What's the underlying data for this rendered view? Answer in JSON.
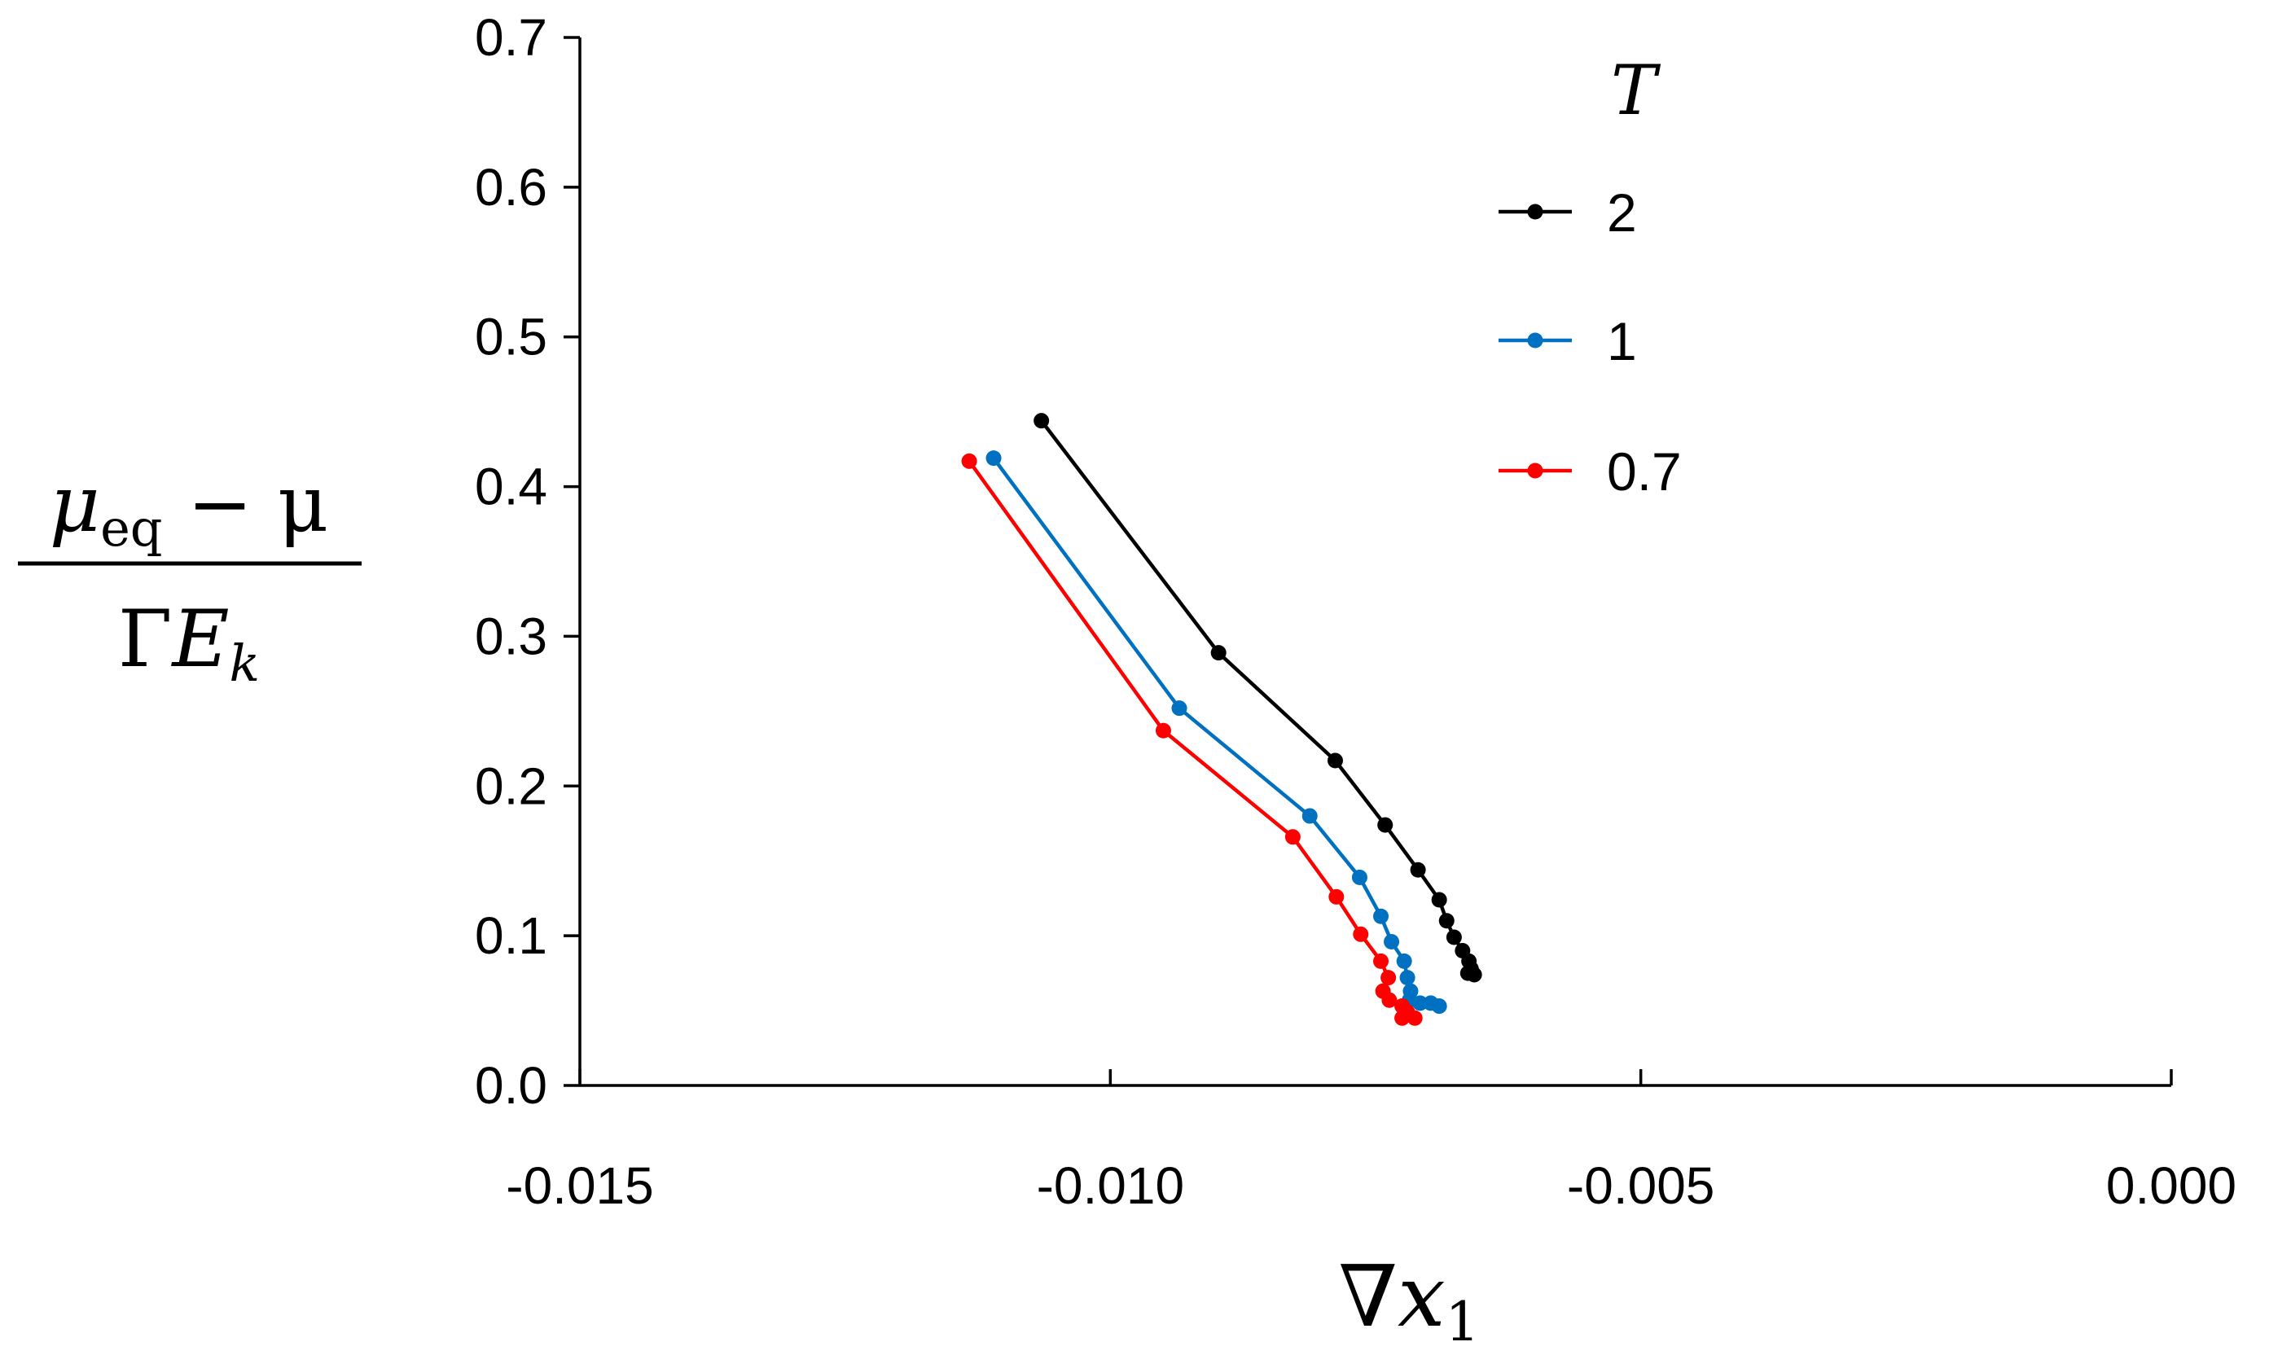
{
  "chart_data": {
    "type": "line",
    "title": "",
    "xlabel": "∇x₁",
    "xlabel_main": "∇",
    "xlabel_var": "x",
    "xlabel_sub": "1",
    "ylabel": "(μeq − μ) / (ΓE_k)",
    "ylabel_num_mu": "μ",
    "ylabel_num_sub": "eq",
    "ylabel_num_rest": " − μ",
    "ylabel_den_gamma": "Γ",
    "ylabel_den_var": "E",
    "ylabel_den_sub": "k",
    "xlim": [
      -0.015,
      0.0
    ],
    "ylim": [
      0.0,
      0.7
    ],
    "x_ticks": [
      -0.015,
      -0.01,
      -0.005,
      0.0
    ],
    "x_tick_labels": [
      "-0.015",
      "-0.010",
      "-0.005",
      "0.000"
    ],
    "y_ticks": [
      0.0,
      0.1,
      0.2,
      0.3,
      0.4,
      0.5,
      0.6,
      0.7
    ],
    "y_tick_labels": [
      "0.0",
      "0.1",
      "0.2",
      "0.3",
      "0.4",
      "0.5",
      "0.6",
      "0.7"
    ],
    "legend_title": "T",
    "legend_position": "top-right",
    "grid": false,
    "series": [
      {
        "name": "2",
        "color": "#000000",
        "points": [
          [
            -0.01065,
            0.444
          ],
          [
            -0.00898,
            0.289
          ],
          [
            -0.00788,
            0.217
          ],
          [
            -0.00741,
            0.174
          ],
          [
            -0.0071,
            0.144
          ],
          [
            -0.0069,
            0.124
          ],
          [
            -0.00683,
            0.11
          ],
          [
            -0.00676,
            0.099
          ],
          [
            -0.00668,
            0.09
          ],
          [
            -0.00662,
            0.083
          ],
          [
            -0.0066,
            0.078
          ],
          [
            -0.00663,
            0.075
          ],
          [
            -0.00657,
            0.074
          ]
        ]
      },
      {
        "name": "1",
        "color": "#0070C0",
        "points": [
          [
            -0.0111,
            0.419
          ],
          [
            -0.00935,
            0.252
          ],
          [
            -0.00812,
            0.18
          ],
          [
            -0.00765,
            0.139
          ],
          [
            -0.00745,
            0.113
          ],
          [
            -0.00735,
            0.096
          ],
          [
            -0.00723,
            0.083
          ],
          [
            -0.0072,
            0.072
          ],
          [
            -0.00717,
            0.063
          ],
          [
            -0.00718,
            0.057
          ],
          [
            -0.00708,
            0.055
          ],
          [
            -0.00698,
            0.055
          ],
          [
            -0.0069,
            0.053
          ]
        ]
      },
      {
        "name": "0.7",
        "color": "#FF0000",
        "points": [
          [
            -0.01133,
            0.417
          ],
          [
            -0.0095,
            0.237
          ],
          [
            -0.00828,
            0.166
          ],
          [
            -0.00787,
            0.126
          ],
          [
            -0.00764,
            0.101
          ],
          [
            -0.00745,
            0.083
          ],
          [
            -0.00738,
            0.072
          ],
          [
            -0.00743,
            0.063
          ],
          [
            -0.00737,
            0.057
          ],
          [
            -0.00725,
            0.053
          ],
          [
            -0.0072,
            0.049
          ],
          [
            -0.00725,
            0.045
          ],
          [
            -0.00713,
            0.045
          ]
        ]
      }
    ]
  }
}
